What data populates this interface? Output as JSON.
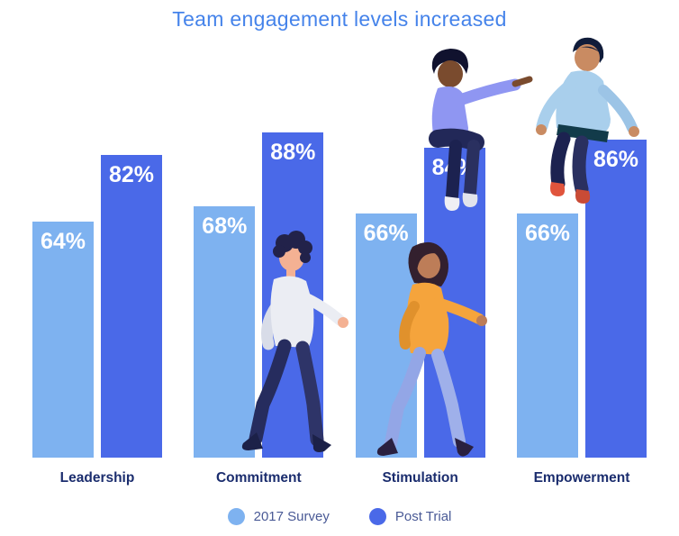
{
  "title": "Team engagement levels increased",
  "chart_data": {
    "type": "bar",
    "title": "Team engagement levels increased",
    "categories": [
      "Leadership",
      "Commitment",
      "Stimulation",
      "Empowerment"
    ],
    "series": [
      {
        "name": "2017 Survey",
        "color": "#7EB2F0",
        "values": [
          64,
          68,
          66,
          66
        ]
      },
      {
        "name": "Post Trial",
        "color": "#4A69E8",
        "values": [
          82,
          88,
          84,
          86
        ]
      }
    ],
    "value_unit": "%",
    "value_labels": [
      "64%",
      "82%",
      "68%",
      "88%",
      "66%",
      "84%",
      "66%",
      "86%"
    ],
    "ylim": [
      0,
      100
    ],
    "grid": false,
    "axis_labels_shown": false,
    "legend_position": "bottom"
  },
  "legend": [
    {
      "label": "2017 Survey",
      "color": "#7EB2F0"
    },
    {
      "label": "Post Trial",
      "color": "#4A69E8"
    }
  ],
  "illustrations": [
    "sitting-people-on-bars",
    "walking-man",
    "walking-woman"
  ],
  "colors": {
    "background": "#FFFFFF",
    "title": "#4583EA",
    "category_label": "#1B2D6E",
    "legend_label": "#4A5A96",
    "value_label": "#FFFFFF",
    "series_light": "#7EB2F0",
    "series_dark": "#4A69E8"
  }
}
